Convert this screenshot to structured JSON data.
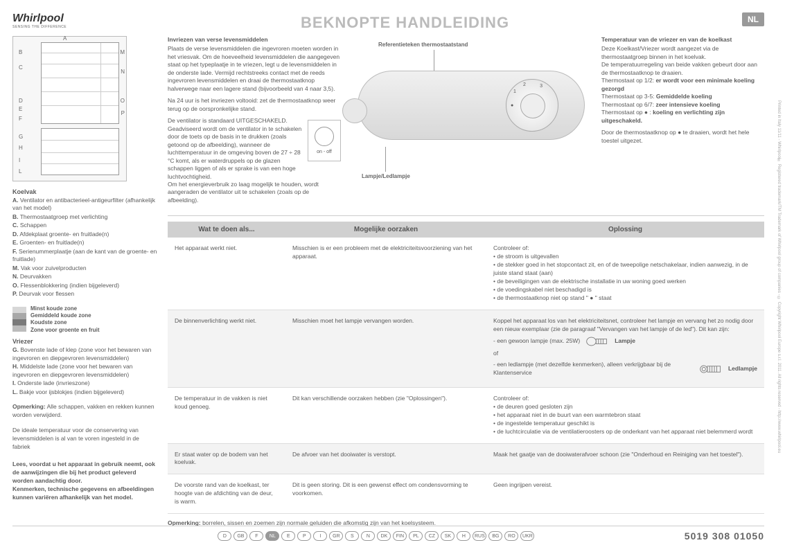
{
  "header": {
    "logo_text": "Whirlpool",
    "logo_sub": "SENSING THE DIFFERENCE",
    "title": "BEKNOPTE HANDLEIDING",
    "lang_badge": "NL"
  },
  "fridge_labels": [
    "A",
    "B",
    "C",
    "D",
    "E",
    "F",
    "M",
    "N",
    "O",
    "P",
    "G",
    "H",
    "I",
    "L"
  ],
  "left": {
    "koelvak_heading": "Koelvak",
    "koelvak_items": [
      {
        "k": "A.",
        "t": "Ventilator en antibacterieel-antigeurfilter (afhankelijk van het model)"
      },
      {
        "k": "B.",
        "t": "Thermostaatgroep met verlichting"
      },
      {
        "k": "C.",
        "t": "Schappen"
      },
      {
        "k": "D.",
        "t": "Afdekplaat groente- en fruitlade(n)"
      },
      {
        "k": "E.",
        "t": "Groenten- en fruitlade(n)"
      },
      {
        "k": "F.",
        "t": "Serienummerplaatje (aan de kant van de groente- en fruitlade)"
      },
      {
        "k": "M.",
        "t": "Vak voor zuivelproducten"
      },
      {
        "k": "N.",
        "t": "Deurvakken"
      },
      {
        "k": "O.",
        "t": "Flessenblokkering (indien bijgeleverd)"
      },
      {
        "k": "P.",
        "t": "Deurvak voor flessen"
      }
    ],
    "zones": [
      {
        "c": "#d7d7d7",
        "t": "Minst koude zone"
      },
      {
        "c": "#a8a8a8",
        "t": "Gemiddeld koude zone"
      },
      {
        "c": "#7a7a7a",
        "t": "Koudste zone"
      },
      {
        "c": "#bcbcbc",
        "t": "Zone voor groente en fruit"
      }
    ],
    "vriezer_heading": "Vriezer",
    "vriezer_items": [
      {
        "k": "G.",
        "t": "Bovenste lade of klep (zone voor het bewaren van ingevroren en diepgevroren levensmiddelen)"
      },
      {
        "k": "H.",
        "t": "Middelste lade (zone voor het bewaren van ingevroren en diepgevroren levensmiddelen)"
      },
      {
        "k": "I.",
        "t": "Onderste lade (invrieszone)"
      },
      {
        "k": "L.",
        "t": "Bakje voor ijsblokjes (indien bijgeleverd)"
      }
    ],
    "opm_label": "Opmerking:",
    "opm_text": "Alle schappen, vakken en rekken kunnen worden verwijderd.",
    "ideal_temp": "De ideale temperatuur voor de conservering van levensmiddelen is al van te voren ingesteld in de fabriek",
    "bold_note": "Lees, voordat u het apparaat in gebruik neemt, ook de aanwijzingen die bij het product geleverd worden aandachtig door.\nKenmerken, technische gegevens en afbeeldingen kunnen variëren afhankelijk van het model."
  },
  "top_left_panel": {
    "h": "Invriezen van verse levensmiddelen",
    "p1": "Plaats de verse levensmiddelen die ingevroren moeten worden in het vriesvak. Om de hoeveelheid levensmiddelen die aangegeven staat op het typeplaatje in te vriezen, legt u de levensmiddelen in de onderste lade. Vermijd rechtstreeks contact met de reeds ingevroren levensmiddelen en draai de thermostaatknop halverwege naar een lagere stand (bijvoorbeeld van 4 naar 3,5).",
    "p2": "Na 24 uur is het invriezen voltooid: zet de thermostaatknop weer terug op de oorspronkelijke stand.",
    "p3": "De ventilator is standaard UITGESCHAKELD.\nGeadviseerd wordt om de ventilator in te schakelen door de toets op de basis in te drukken (zoals getoond op de afbeelding), wanneer de luchttemperatuur in de omgeving boven de 27 ÷ 28 °C komt, als er waterdruppels op de glazen schappen liggen of als er sprake is van een hoge luchtvochtigheid.\nOm het energieverbruik zo laag mogelijk te houden, wordt aangeraden de ventilator uit te schakelen (zoals op de afbeelding).",
    "fan_label": "on - off"
  },
  "diagram_labels": {
    "ref": "Referentieteken thermostaatstand",
    "lamp": "Lampje/Ledlampje"
  },
  "top_right_panel": {
    "h": "Temperatuur van de vriezer en van de koelkast",
    "p1": "Deze Koelkast/Vriezer wordt aangezet via de thermostaatgroep binnen in het koelvak.",
    "p2": "De temperatuurregeling van beide vakken gebeurt door aan de thermostaatknop te draaien.",
    "l1a": "Thermostaat op 1/2: ",
    "l1b": "er wordt voor een minimale koeling gezorgd",
    "l2a": "Thermostaat op 3-5: ",
    "l2b": "Gemiddelde koeling",
    "l3a": "Thermostaat op 6/7: ",
    "l3b": "zeer intensieve koeling",
    "l4a": "Thermostaat op ● : ",
    "l4b": "koeling en verlichting zijn uitgeschakeld.",
    "p3": "Door de thermostaatknop op ● te draaien, wordt het hele toestel uitgezet."
  },
  "table": {
    "h1": "Wat te doen als...",
    "h2": "Mogelijke oorzaken",
    "h3": "Oplossing",
    "rows": [
      {
        "c1": "Het apparaat werkt niet.",
        "c2": "Misschien is er een probleem met de elektriciteitsvoorziening van het apparaat.",
        "c3": "Controleer of:\n• de stroom is uitgevallen\n• de stekker goed in het stopcontact zit, en of de tweepolige netschakelaar, indien aanwezig, in de juiste stand staat (aan)\n• de beveiligingen van de elektrische installatie in uw woning goed werken\n• de voedingskabel niet beschadigd is\n• de thermostaatknop niet op stand \" ● \" staat"
      },
      {
        "c1": "De binnenverlichting werkt niet.",
        "c2": "Misschien moet het lampje vervangen worden.",
        "c3_intro": "Koppel het apparaat los van het elektriciteitsnet, controleer het lampje en vervang het zo nodig door een nieuw exemplaar (zie de paragraaf \"Vervangen van het lampje of de led\"). Dit kan zijn:",
        "c3_a": "- een gewoon lampje (max. 25W)",
        "c3_a_lbl": "Lampje",
        "c3_or": "of",
        "c3_b": "- een ledlampje (met dezelfde kenmerken), alleen verkrijgbaar bij de Klantenservice",
        "c3_b_lbl": "Ledlampje"
      },
      {
        "c1": "De temperatuur in de vakken is niet koud genoeg.",
        "c2": "Dit kan verschillende oorzaken hebben (zie \"Oplossingen\").",
        "c3": "Controleer of:\n• de deuren goed gesloten zijn\n• het apparaat niet in de buurt van een warmtebron staat\n• de ingestelde temperatuur geschikt is\n• de luchtcirculatie via de ventilatieroosters op de onderkant van het apparaat niet belemmerd wordt"
      },
      {
        "c1": "Er staat water op de bodem van het koelvak.",
        "c2": "De afvoer van het dooiwater is verstopt.",
        "c3": "Maak het gaatje van de dooiwaterafvoer schoon (zie \"Onderhoud en Reiniging van het toestel\")."
      },
      {
        "c1": "De voorste rand van de koelkast, ter hoogte van de afdichting van de deur, is warm.",
        "c2": "Dit is geen storing. Dit is een gewenst effect om condensvorming te voorkomen.",
        "c3": "Geen ingrijpen vereist."
      }
    ],
    "footnote_label": "Opmerking:",
    "footnote": "borrelen, sissen en zoemen zijn normale geluiden die afkomstig zijn van het koelsysteem."
  },
  "footer": {
    "langs": [
      "D",
      "GB",
      "F",
      "NL",
      "E",
      "P",
      "I",
      "GR",
      "S",
      "N",
      "DK",
      "FIN",
      "PL",
      "CZ",
      "SK",
      "H",
      "RUS",
      "BG",
      "RO",
      "UKR"
    ],
    "active": "NL",
    "partno": "5019 308 01050"
  },
  "vert": "Printed in Italy    11/11 - Whirlpool® Registered trademark/TM Trademark of Whirlpool group of companies - © Copyright Whirlpool Europe s.r.l. 2011. All rights reserved - http://www.whirlpool.eu"
}
